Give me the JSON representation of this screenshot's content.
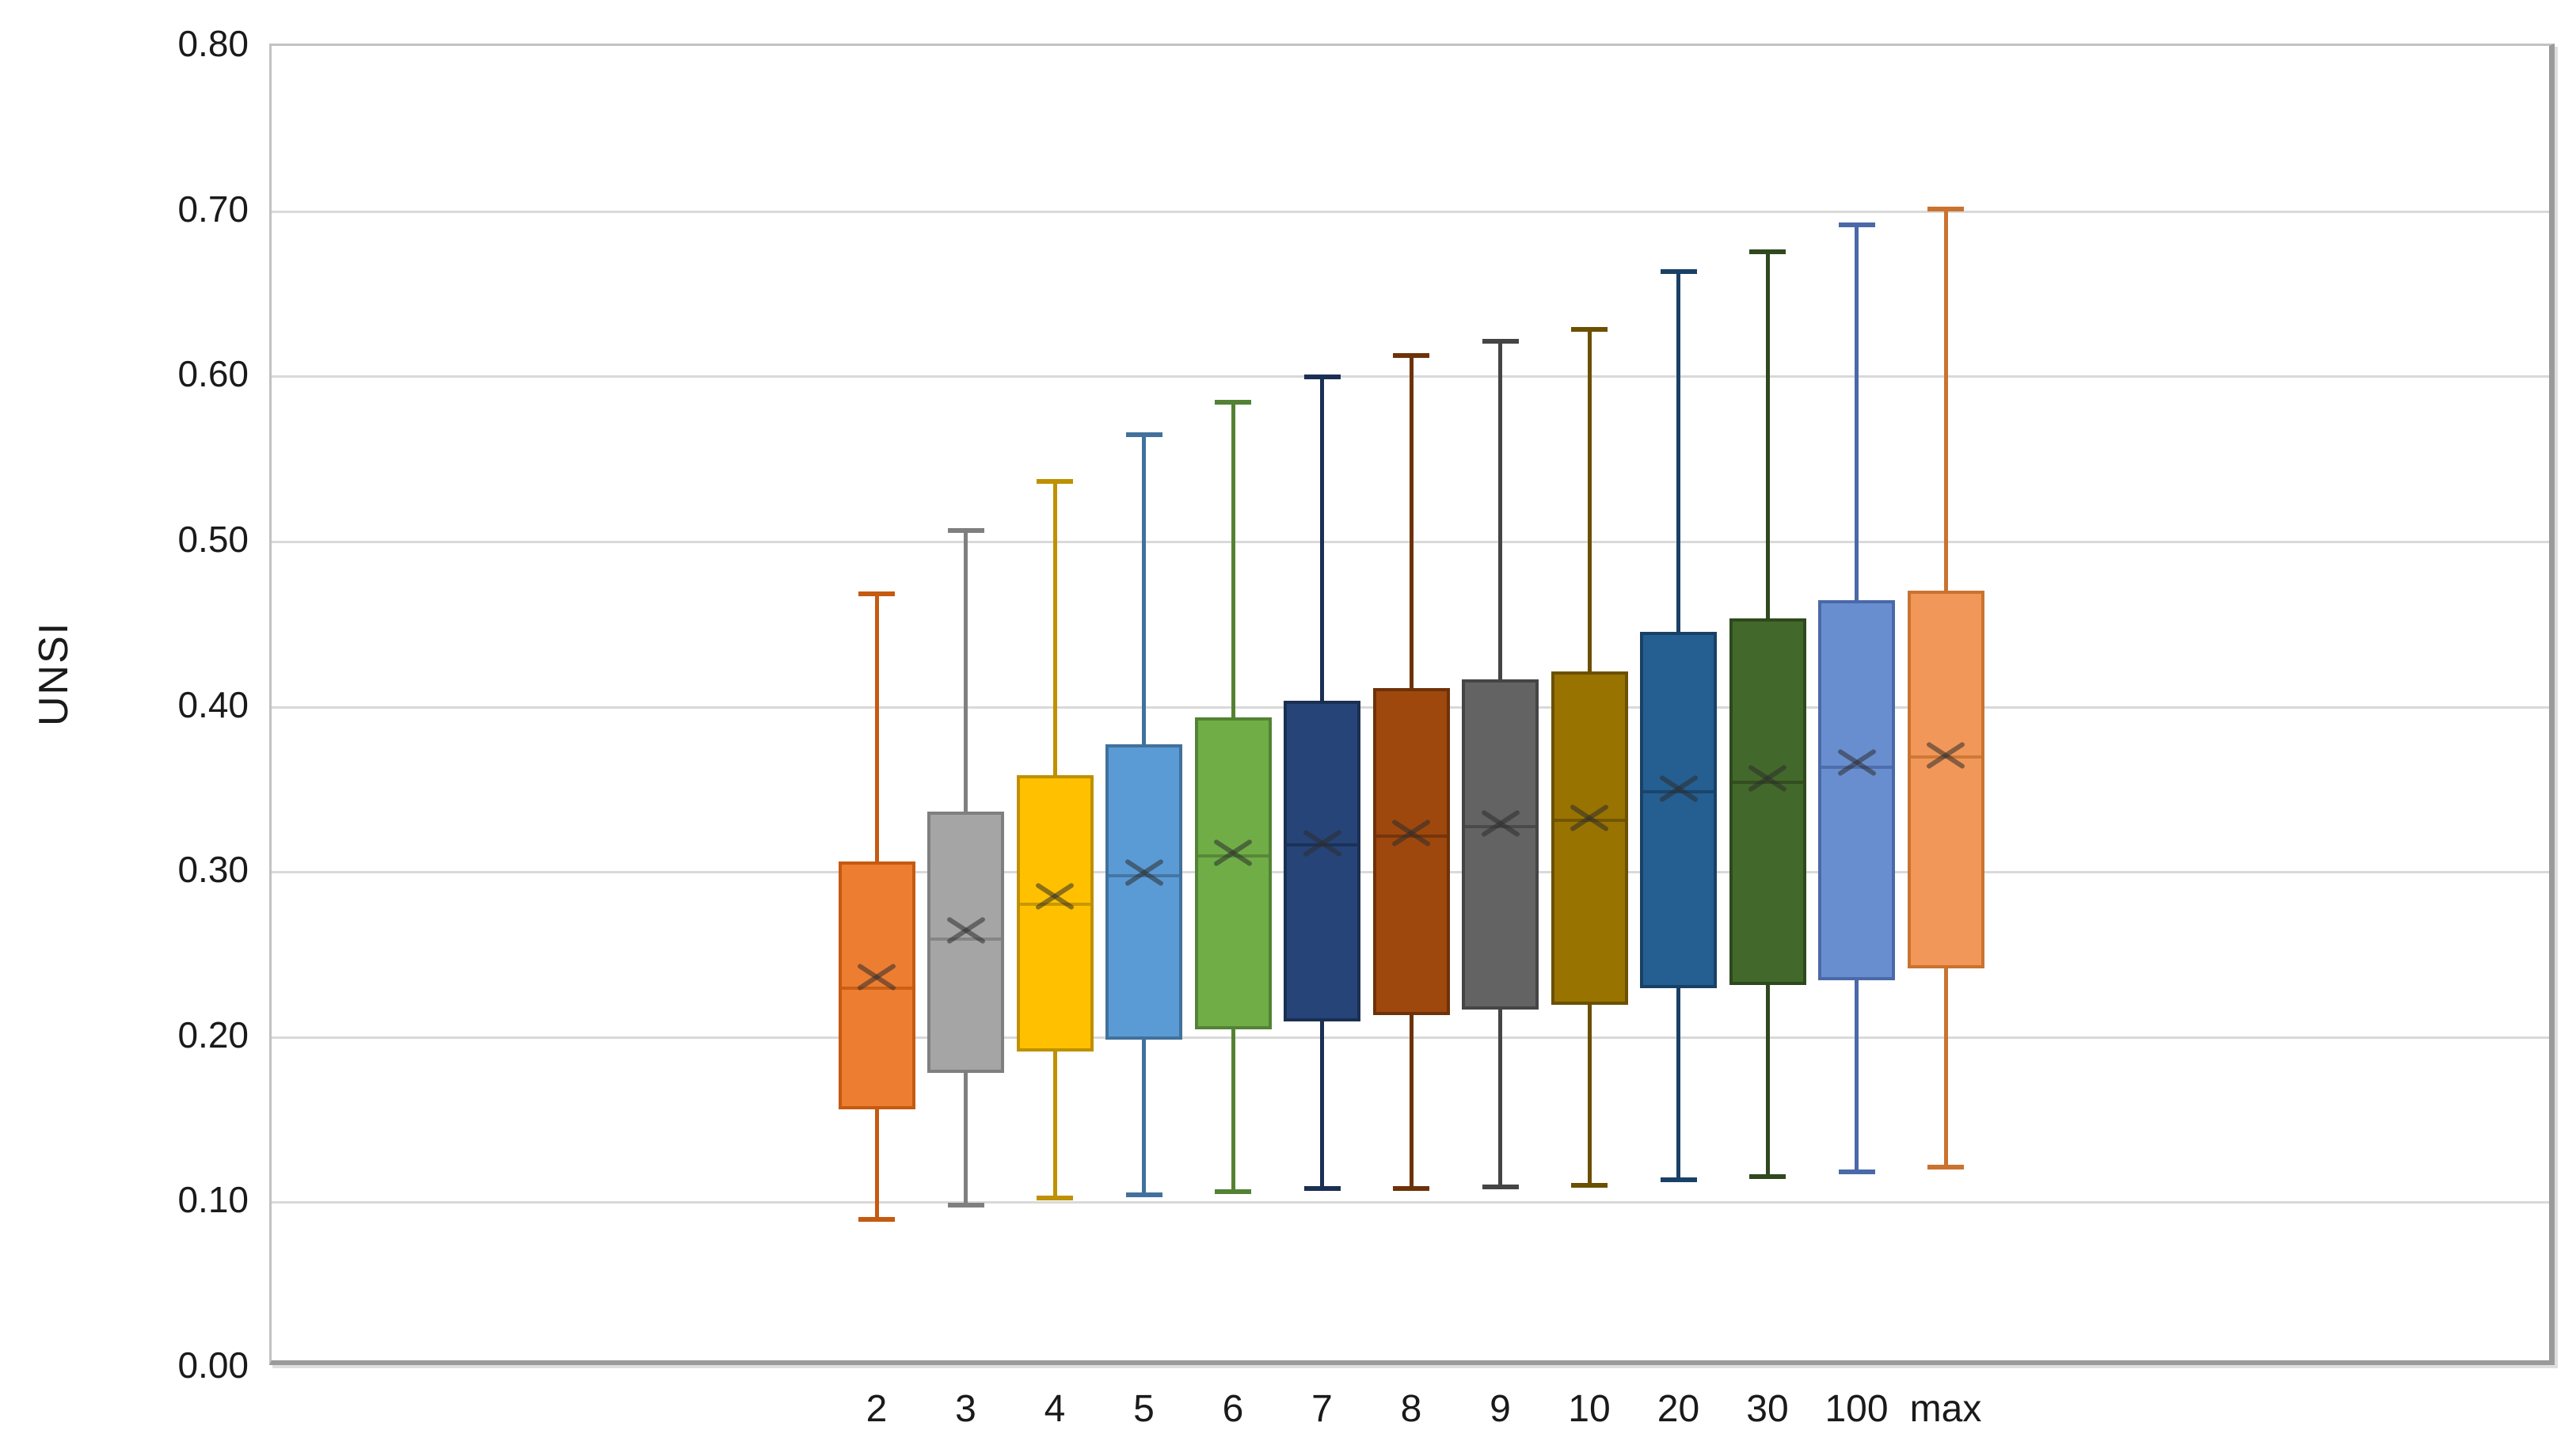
{
  "chart_data": {
    "type": "boxplot",
    "title": "",
    "xlabel": "",
    "ylabel": "UNSI",
    "ylim": [
      0.0,
      0.8
    ],
    "ytick_step": 0.1,
    "ytick_labels": [
      "0.00",
      "0.10",
      "0.20",
      "0.30",
      "0.40",
      "0.50",
      "0.60",
      "0.70",
      "0.80"
    ],
    "grid": true,
    "legend": false,
    "categories": [
      "2",
      "3",
      "4",
      "5",
      "6",
      "7",
      "8",
      "9",
      "10",
      "20",
      "30",
      "100",
      "max"
    ],
    "series": [
      {
        "label": "2",
        "fill": "#ED7D31",
        "stroke": "#C55A11",
        "min": 0.088,
        "q1": 0.155,
        "median": 0.228,
        "mean": 0.235,
        "q3": 0.305,
        "max": 0.467
      },
      {
        "label": "3",
        "fill": "#A5A5A5",
        "stroke": "#7F7F7F",
        "min": 0.097,
        "q1": 0.177,
        "median": 0.258,
        "mean": 0.263,
        "q3": 0.335,
        "max": 0.505
      },
      {
        "label": "4",
        "fill": "#FFC000",
        "stroke": "#BF9000",
        "min": 0.101,
        "q1": 0.19,
        "median": 0.279,
        "mean": 0.284,
        "q3": 0.357,
        "max": 0.535
      },
      {
        "label": "5",
        "fill": "#5B9BD5",
        "stroke": "#41719C",
        "min": 0.103,
        "q1": 0.197,
        "median": 0.296,
        "mean": 0.298,
        "q3": 0.376,
        "max": 0.563
      },
      {
        "label": "6",
        "fill": "#70AD47",
        "stroke": "#548235",
        "min": 0.105,
        "q1": 0.203,
        "median": 0.308,
        "mean": 0.31,
        "q3": 0.392,
        "max": 0.583
      },
      {
        "label": "7",
        "fill": "#264478",
        "stroke": "#1A2F53",
        "min": 0.107,
        "q1": 0.208,
        "median": 0.315,
        "mean": 0.316,
        "q3": 0.402,
        "max": 0.598
      },
      {
        "label": "8",
        "fill": "#9E480E",
        "stroke": "#6E3209",
        "min": 0.107,
        "q1": 0.212,
        "median": 0.32,
        "mean": 0.322,
        "q3": 0.41,
        "max": 0.611
      },
      {
        "label": "9",
        "fill": "#636363",
        "stroke": "#454545",
        "min": 0.108,
        "q1": 0.215,
        "median": 0.326,
        "mean": 0.328,
        "q3": 0.415,
        "max": 0.62
      },
      {
        "label": "10",
        "fill": "#997300",
        "stroke": "#6B5000",
        "min": 0.109,
        "q1": 0.218,
        "median": 0.33,
        "mean": 0.331,
        "q3": 0.42,
        "max": 0.627
      },
      {
        "label": "20",
        "fill": "#255E91",
        "stroke": "#194166",
        "min": 0.112,
        "q1": 0.228,
        "median": 0.347,
        "mean": 0.349,
        "q3": 0.444,
        "max": 0.662
      },
      {
        "label": "30",
        "fill": "#43682B",
        "stroke": "#2F491E",
        "min": 0.114,
        "q1": 0.23,
        "median": 0.353,
        "mean": 0.355,
        "q3": 0.452,
        "max": 0.674
      },
      {
        "label": "100",
        "fill": "#698ED0",
        "stroke": "#4A69A8",
        "min": 0.117,
        "q1": 0.233,
        "median": 0.362,
        "mean": 0.365,
        "q3": 0.463,
        "max": 0.69
      },
      {
        "label": "max",
        "fill": "#F1975A",
        "stroke": "#C9732F",
        "min": 0.12,
        "q1": 0.24,
        "median": 0.368,
        "mean": 0.369,
        "q3": 0.469,
        "max": 0.7
      }
    ],
    "colors": {
      "gridline": "#D9D9D9",
      "plot_border": "#9A9A9A",
      "text": "#1A1A1A",
      "mean_marker": "rgba(45,45,45,0.55)"
    }
  }
}
